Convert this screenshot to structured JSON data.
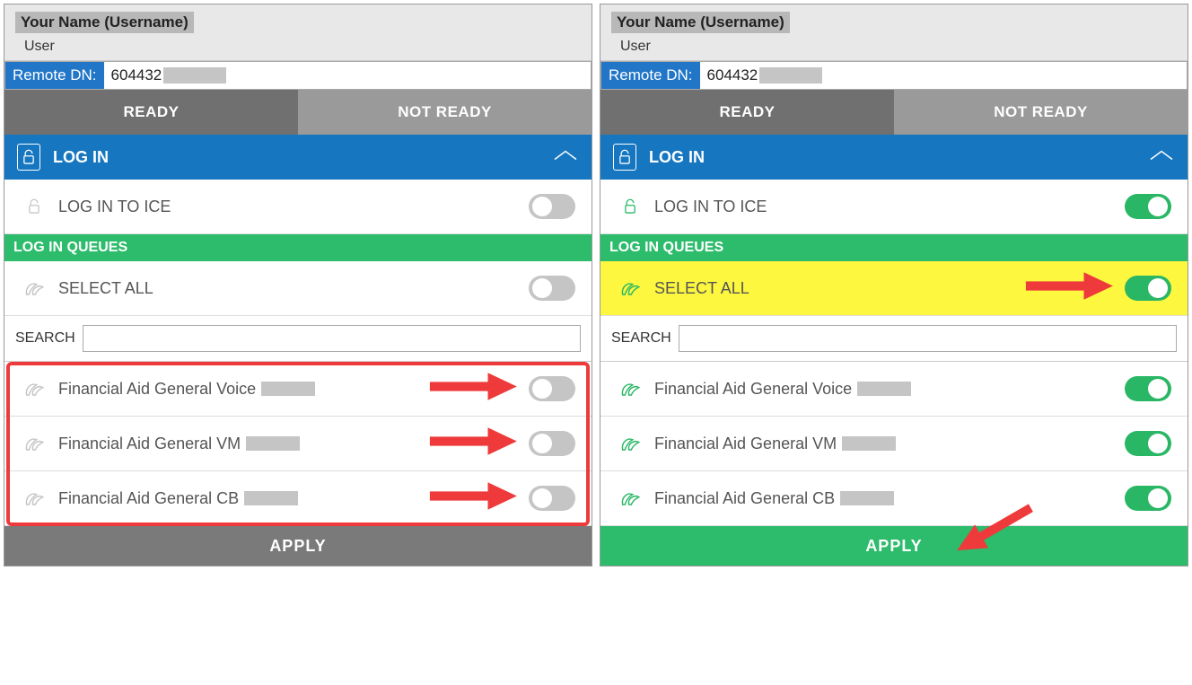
{
  "colors": {
    "primary_blue": "#1676c0",
    "dn_blue": "#2176c7",
    "green": "#2dbb6c",
    "toggle_on": "#29b765",
    "toggle_off": "#c5c5c5",
    "ready_bg": "#707070",
    "notready_bg": "#9a9a9a",
    "highlight": "#fdf73f",
    "arrow_red": "#ee3a3a",
    "header_gray": "#e8e8e8",
    "apply_gray": "#7a7a7a"
  },
  "left": {
    "name": "Your Name (Username)",
    "role": "User",
    "dn_label": "Remote DN:",
    "dn_value": "604432",
    "ready": "READY",
    "not_ready": "NOT READY",
    "login_header": "LOG IN",
    "login_ice_label": "LOG IN TO ICE",
    "login_ice_on": false,
    "section_label": "LOG IN QUEUES",
    "select_all_label": "SELECT ALL",
    "select_all_on": false,
    "select_all_highlight": false,
    "search_label": "SEARCH",
    "queues": [
      {
        "label": "Financial Aid General Voice",
        "on": false,
        "arrow": true
      },
      {
        "label": "Financial Aid General VM",
        "on": false,
        "arrow": true
      },
      {
        "label": "Financial Aid General CB",
        "on": false,
        "arrow": true
      }
    ],
    "queue_box_outline": true,
    "apply_label": "APPLY",
    "apply_style": "gray",
    "apply_arrow": false
  },
  "right": {
    "name": "Your Name (Username)",
    "role": "User",
    "dn_label": "Remote DN:",
    "dn_value": "604432",
    "ready": "READY",
    "not_ready": "NOT READY",
    "login_header": "LOG IN",
    "login_ice_label": "LOG IN TO ICE",
    "login_ice_on": true,
    "section_label": "LOG IN QUEUES",
    "select_all_label": "SELECT ALL",
    "select_all_on": true,
    "select_all_highlight": true,
    "select_all_arrow": true,
    "search_label": "SEARCH",
    "queues": [
      {
        "label": "Financial Aid General Voice",
        "on": true,
        "arrow": false
      },
      {
        "label": "Financial Aid General VM",
        "on": true,
        "arrow": false
      },
      {
        "label": "Financial Aid General CB",
        "on": true,
        "arrow": false
      }
    ],
    "queue_box_outline": false,
    "apply_label": "APPLY",
    "apply_style": "green",
    "apply_arrow": true
  }
}
